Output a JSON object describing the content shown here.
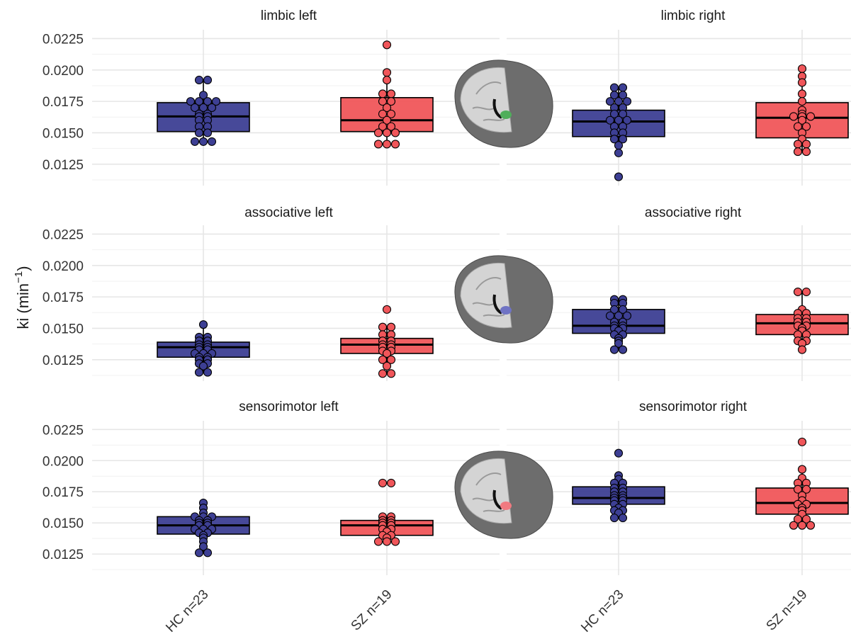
{
  "chart_data": {
    "type": "box",
    "ylabel": "ki (min",
    "ylabel_sup": "−1",
    "ylabel_close": ")",
    "categories": [
      "HC n=23",
      "SZ n=19"
    ],
    "ylim": [
      0.0108,
      0.0232
    ],
    "yticks": [
      0.0125,
      0.015,
      0.0175,
      0.02,
      0.0225
    ],
    "ytick_labels": [
      "0.0125",
      "0.0150",
      "0.0175",
      "0.0200",
      "0.0225"
    ],
    "grid": true,
    "colors": {
      "HC": "#3d3f94",
      "SZ": "#f0565a",
      "insert_limbic": "#4fae5a",
      "insert_associative": "#6f73c4",
      "insert_sensorimotor": "#f07a80"
    },
    "panels": [
      {
        "title": "limbic left",
        "boxes": [
          {
            "group": "HC",
            "q1": 0.0151,
            "median": 0.0163,
            "q3": 0.0174,
            "whisker_low": 0.0143,
            "whisker_high": 0.0192,
            "points": [
              0.0192,
              0.0192,
              0.018,
              0.0175,
              0.0175,
              0.0175,
              0.0175,
              0.017,
              0.017,
              0.017,
              0.0165,
              0.0165,
              0.0163,
              0.0163,
              0.016,
              0.016,
              0.0155,
              0.0155,
              0.015,
              0.015,
              0.0143,
              0.0143,
              0.0143
            ]
          },
          {
            "group": "SZ",
            "q1": 0.0151,
            "median": 0.016,
            "q3": 0.0178,
            "whisker_low": 0.0141,
            "whisker_high": 0.0198,
            "points": [
              0.022,
              0.0198,
              0.0192,
              0.0181,
              0.0181,
              0.0175,
              0.0175,
              0.017,
              0.0165,
              0.0165,
              0.016,
              0.0155,
              0.0155,
              0.015,
              0.015,
              0.015,
              0.0141,
              0.0141,
              0.0141
            ]
          }
        ]
      },
      {
        "title": "limbic right",
        "boxes": [
          {
            "group": "HC",
            "q1": 0.0147,
            "median": 0.0159,
            "q3": 0.0168,
            "whisker_low": 0.0134,
            "whisker_high": 0.0186,
            "points": [
              0.0186,
              0.0186,
              0.018,
              0.018,
              0.0175,
              0.0175,
              0.0175,
              0.017,
              0.017,
              0.0165,
              0.0165,
              0.016,
              0.016,
              0.016,
              0.0155,
              0.0155,
              0.015,
              0.015,
              0.0145,
              0.0145,
              0.014,
              0.0134,
              0.0115
            ]
          },
          {
            "group": "SZ",
            "q1": 0.0146,
            "median": 0.0162,
            "q3": 0.0174,
            "whisker_low": 0.0135,
            "whisker_high": 0.0201,
            "points": [
              0.0201,
              0.0195,
              0.019,
              0.0181,
              0.0175,
              0.0168,
              0.0165,
              0.0163,
              0.0163,
              0.0163,
              0.016,
              0.0155,
              0.0155,
              0.015,
              0.0145,
              0.0141,
              0.0141,
              0.0135,
              0.0135
            ]
          }
        ]
      },
      {
        "title": "associative left",
        "boxes": [
          {
            "group": "HC",
            "q1": 0.0127,
            "median": 0.0135,
            "q3": 0.0139,
            "whisker_low": 0.0115,
            "whisker_high": 0.0153,
            "points": [
              0.0153,
              0.0143,
              0.0143,
              0.014,
              0.014,
              0.0137,
              0.0137,
              0.0135,
              0.0135,
              0.0133,
              0.0133,
              0.013,
              0.013,
              0.013,
              0.0127,
              0.0127,
              0.0125,
              0.0125,
              0.0122,
              0.0122,
              0.012,
              0.0115,
              0.0115
            ]
          },
          {
            "group": "SZ",
            "q1": 0.013,
            "median": 0.0137,
            "q3": 0.0142,
            "whisker_low": 0.0114,
            "whisker_high": 0.0151,
            "points": [
              0.0165,
              0.0151,
              0.0151,
              0.0145,
              0.0145,
              0.014,
              0.014,
              0.0137,
              0.0137,
              0.0135,
              0.0135,
              0.0132,
              0.0132,
              0.013,
              0.0125,
              0.0125,
              0.012,
              0.0114,
              0.0114
            ]
          }
        ]
      },
      {
        "title": "associative right",
        "boxes": [
          {
            "group": "HC",
            "q1": 0.0146,
            "median": 0.0152,
            "q3": 0.0165,
            "whisker_low": 0.0133,
            "whisker_high": 0.0173,
            "points": [
              0.0173,
              0.0173,
              0.017,
              0.017,
              0.0165,
              0.0165,
              0.016,
              0.016,
              0.016,
              0.0155,
              0.0155,
              0.0152,
              0.0152,
              0.015,
              0.015,
              0.0148,
              0.0145,
              0.0145,
              0.0142,
              0.014,
              0.0138,
              0.0133,
              0.0133
            ]
          },
          {
            "group": "SZ",
            "q1": 0.0145,
            "median": 0.0154,
            "q3": 0.0161,
            "whisker_low": 0.0133,
            "whisker_high": 0.0179,
            "points": [
              0.0179,
              0.0179,
              0.0165,
              0.0162,
              0.0162,
              0.0158,
              0.0158,
              0.0155,
              0.0155,
              0.0152,
              0.0152,
              0.015,
              0.0148,
              0.0145,
              0.0145,
              0.014,
              0.014,
              0.0138,
              0.0133
            ]
          }
        ]
      },
      {
        "title": "sensorimotor left",
        "boxes": [
          {
            "group": "HC",
            "q1": 0.0141,
            "median": 0.0148,
            "q3": 0.0155,
            "whisker_low": 0.0126,
            "whisker_high": 0.0166,
            "points": [
              0.0166,
              0.0162,
              0.0158,
              0.0155,
              0.0155,
              0.0155,
              0.0152,
              0.0152,
              0.015,
              0.015,
              0.0148,
              0.0148,
              0.0145,
              0.0145,
              0.0145,
              0.0142,
              0.0142,
              0.014,
              0.0138,
              0.0135,
              0.0131,
              0.0126,
              0.0126
            ]
          },
          {
            "group": "SZ",
            "q1": 0.014,
            "median": 0.0148,
            "q3": 0.0152,
            "whisker_low": 0.0135,
            "whisker_high": 0.0155,
            "points": [
              0.0182,
              0.0182,
              0.0155,
              0.0155,
              0.0152,
              0.0152,
              0.015,
              0.015,
              0.0148,
              0.0148,
              0.0145,
              0.0145,
              0.0143,
              0.014,
              0.014,
              0.0138,
              0.0135,
              0.0135,
              0.0135
            ]
          }
        ]
      },
      {
        "title": "sensorimotor right",
        "boxes": [
          {
            "group": "HC",
            "q1": 0.0165,
            "median": 0.017,
            "q3": 0.0179,
            "whisker_low": 0.0154,
            "whisker_high": 0.0188,
            "points": [
              0.0206,
              0.0188,
              0.0185,
              0.0182,
              0.0182,
              0.0178,
              0.0178,
              0.0175,
              0.0175,
              0.0172,
              0.0172,
              0.017,
              0.017,
              0.0168,
              0.0168,
              0.0165,
              0.0165,
              0.0162,
              0.016,
              0.016,
              0.0158,
              0.0154,
              0.0154
            ]
          },
          {
            "group": "SZ",
            "q1": 0.0157,
            "median": 0.0166,
            "q3": 0.0178,
            "whisker_low": 0.0148,
            "whisker_high": 0.0193,
            "points": [
              0.0215,
              0.0193,
              0.0186,
              0.0182,
              0.0182,
              0.0177,
              0.0177,
              0.0172,
              0.0168,
              0.0165,
              0.0165,
              0.0162,
              0.016,
              0.0157,
              0.0153,
              0.0153,
              0.0148,
              0.0148,
              0.0148
            ]
          }
        ]
      }
    ]
  }
}
